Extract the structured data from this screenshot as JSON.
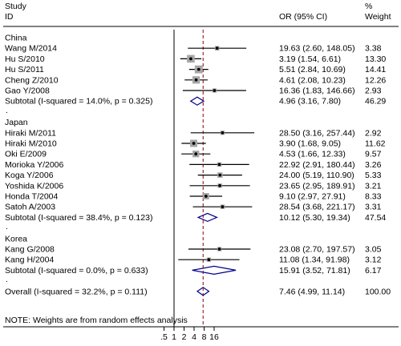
{
  "chart_data": {
    "type": "forest",
    "header": {
      "study": "Study",
      "id": "ID",
      "or_ci": "OR (95% CI)",
      "pct": "%",
      "weight": "Weight"
    },
    "x_ticks": [
      ".5",
      "1",
      "2",
      "4",
      "8",
      "16"
    ],
    "x_tick_values": [
      0.5,
      1,
      2,
      4,
      8,
      16
    ],
    "pooled_reference": 7.46,
    "footnote": "NOTE: Weights are from random effects analysis",
    "colors": {
      "ci_line": "#000000",
      "box": "#a6a6a6",
      "diamond": "#00008b",
      "dashed": "#8b0000"
    },
    "rows": [
      {
        "kind": "group",
        "label": "China"
      },
      {
        "kind": "study",
        "label": "Wang M/2014",
        "or": 19.63,
        "lo": 2.6,
        "hi": 148.05,
        "ci_text": "19.63 (2.60, 148.05)",
        "weight": "3.38",
        "w": 3.38
      },
      {
        "kind": "study",
        "label": "Hu S/2010",
        "or": 3.19,
        "lo": 1.54,
        "hi": 6.61,
        "ci_text": "3.19 (1.54, 6.61)",
        "weight": "13.30",
        "w": 13.3
      },
      {
        "kind": "study",
        "label": "Hu S/2011",
        "or": 5.51,
        "lo": 2.84,
        "hi": 10.69,
        "ci_text": "5.51 (2.84, 10.69)",
        "weight": "14.41",
        "w": 14.41
      },
      {
        "kind": "study",
        "label": "Cheng Z/2010",
        "or": 4.61,
        "lo": 2.08,
        "hi": 10.23,
        "ci_text": "4.61 (2.08, 10.23)",
        "weight": "12.26",
        "w": 12.26
      },
      {
        "kind": "study",
        "label": "Gao Y/2008",
        "or": 16.36,
        "lo": 1.83,
        "hi": 146.66,
        "ci_text": "16.36 (1.83, 146.66)",
        "weight": "2.93",
        "w": 2.93
      },
      {
        "kind": "subtotal",
        "label": "Subtotal  (I-squared = 14.0%, p = 0.325)",
        "or": 4.96,
        "lo": 3.16,
        "hi": 7.8,
        "ci_text": "4.96 (3.16, 7.80)",
        "weight": "46.29"
      },
      {
        "kind": "dot"
      },
      {
        "kind": "group",
        "label": "Japan"
      },
      {
        "kind": "study",
        "label": "Hiraki M/2011",
        "or": 28.5,
        "lo": 3.16,
        "hi": 257.44,
        "ci_text": "28.50 (3.16, 257.44)",
        "weight": "2.92",
        "w": 2.92
      },
      {
        "kind": "study",
        "label": "Hiraki M/2010",
        "or": 3.9,
        "lo": 1.68,
        "hi": 9.05,
        "ci_text": "3.90 (1.68, 9.05)",
        "weight": "11.62",
        "w": 11.62
      },
      {
        "kind": "study",
        "label": "Oki E/2009",
        "or": 4.53,
        "lo": 1.66,
        "hi": 12.33,
        "ci_text": "4.53 (1.66, 12.33)",
        "weight": "9.57",
        "w": 9.57
      },
      {
        "kind": "study",
        "label": "Morioka Y/2006",
        "or": 22.92,
        "lo": 2.91,
        "hi": 180.44,
        "ci_text": "22.92 (2.91, 180.44)",
        "weight": "3.26",
        "w": 3.26
      },
      {
        "kind": "study",
        "label": "Koga Y/2006",
        "or": 24.0,
        "lo": 5.19,
        "hi": 110.9,
        "ci_text": "24.00 (5.19, 110.90)",
        "weight": "5.33",
        "w": 5.33
      },
      {
        "kind": "study",
        "label": "Yoshida K/2006",
        "or": 23.65,
        "lo": 2.95,
        "hi": 189.91,
        "ci_text": "23.65 (2.95, 189.91)",
        "weight": "3.21",
        "w": 3.21
      },
      {
        "kind": "study",
        "label": "Honda T/2004",
        "or": 9.1,
        "lo": 2.97,
        "hi": 27.91,
        "ci_text": "9.10 (2.97, 27.91)",
        "weight": "8.33",
        "w": 8.33
      },
      {
        "kind": "study",
        "label": "Satoh A/2003",
        "or": 28.54,
        "lo": 3.68,
        "hi": 221.17,
        "ci_text": "28.54 (3.68, 221.17)",
        "weight": "3.31",
        "w": 3.31
      },
      {
        "kind": "subtotal",
        "label": "Subtotal  (I-squared = 38.4%, p = 0.123)",
        "or": 10.12,
        "lo": 5.3,
        "hi": 19.34,
        "ci_text": "10.12 (5.30, 19.34)",
        "weight": "47.54"
      },
      {
        "kind": "dot"
      },
      {
        "kind": "group",
        "label": "Korea"
      },
      {
        "kind": "study",
        "label": "Kang G/2008",
        "or": 23.08,
        "lo": 2.7,
        "hi": 197.57,
        "ci_text": "23.08 (2.70, 197.57)",
        "weight": "3.05",
        "w": 3.05
      },
      {
        "kind": "study",
        "label": "Kang H/2004",
        "or": 11.08,
        "lo": 1.34,
        "hi": 91.98,
        "ci_text": "11.08 (1.34, 91.98)",
        "weight": "3.12",
        "w": 3.12
      },
      {
        "kind": "subtotal",
        "label": "Subtotal  (I-squared = 0.0%, p = 0.633)",
        "or": 15.91,
        "lo": 3.52,
        "hi": 71.81,
        "ci_text": "15.91 (3.52, 71.81)",
        "weight": "6.17"
      },
      {
        "kind": "dot"
      },
      {
        "kind": "overall",
        "label": "Overall  (I-squared = 32.2%, p = 0.111)",
        "or": 7.46,
        "lo": 4.99,
        "hi": 11.14,
        "ci_text": "7.46 (4.99, 11.14)",
        "weight": "100.00"
      }
    ]
  }
}
